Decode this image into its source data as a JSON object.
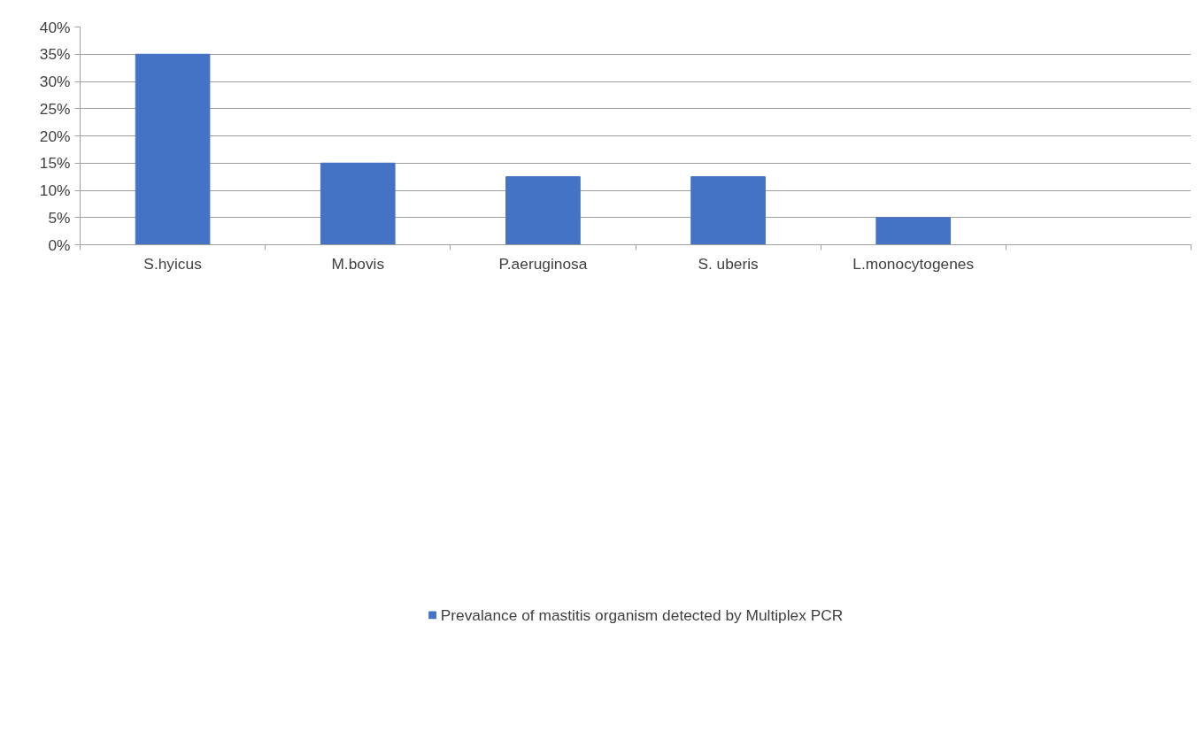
{
  "chart_data": {
    "type": "bar",
    "categories": [
      "S.hyicus",
      "M.bovis",
      "P.aeruginosa",
      "S. uberis",
      "L.monocytogenes",
      null
    ],
    "series": [
      {
        "name": "Prevalance of mastitis organism detected by Multiplex PCR",
        "color": "#4472c4",
        "values": [
          35,
          15,
          12.5,
          12.5,
          5,
          null
        ]
      }
    ],
    "ylim": [
      0,
      40
    ],
    "yticks": [
      {
        "value": 0,
        "label": "0%"
      },
      {
        "value": 5,
        "label": "5%"
      },
      {
        "value": 10,
        "label": "10%"
      },
      {
        "value": 15,
        "label": "15%"
      },
      {
        "value": 20,
        "label": "20%"
      },
      {
        "value": 25,
        "label": "25%"
      },
      {
        "value": 30,
        "label": "30%"
      },
      {
        "value": 35,
        "label": "35%"
      },
      {
        "value": 40,
        "label": "40%"
      }
    ],
    "grid": "y",
    "legend": "bottom"
  }
}
